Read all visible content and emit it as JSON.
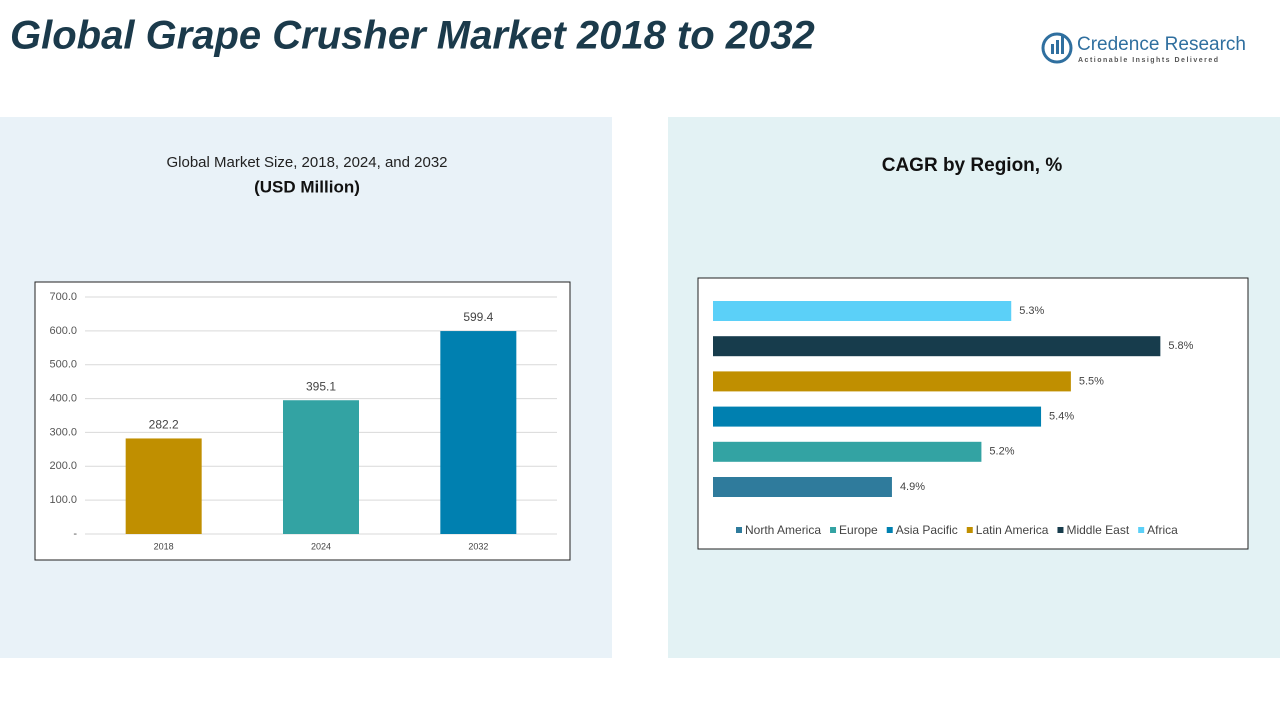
{
  "title": "Global Grape Crusher Market 2018 to 2032",
  "logo": {
    "name": "Credence Research",
    "tagline": "Actionable Insights Delivered"
  },
  "chart_data": [
    {
      "type": "bar",
      "title": "Global Market Size, 2018, 2024, and 2032",
      "subtitle": "(USD Million)",
      "categories": [
        "2018",
        "2024",
        "2032"
      ],
      "values": [
        282.2,
        395.1,
        599.4
      ],
      "value_labels": [
        "282.2",
        "395.1",
        "599.4"
      ],
      "colors": [
        "#c08f00",
        "#33a3a3",
        "#0080b0"
      ],
      "ylim": [
        0,
        700
      ],
      "yticks": [
        {
          "value": 0,
          "label": "-"
        },
        {
          "value": 100,
          "label": "100.0"
        },
        {
          "value": 200,
          "label": "200.0"
        },
        {
          "value": 300,
          "label": "300.0"
        },
        {
          "value": 400,
          "label": "400.0"
        },
        {
          "value": 500,
          "label": "500.0"
        },
        {
          "value": 600,
          "label": "600.0"
        },
        {
          "value": 700,
          "label": "700.0"
        }
      ],
      "grid": true
    },
    {
      "type": "hbar",
      "title": "CAGR by Region, %",
      "categories": [
        "North America",
        "Europe",
        "Asia Pacific",
        "Latin America",
        "Middle East",
        "Africa"
      ],
      "values": [
        4.9,
        5.2,
        5.4,
        5.5,
        5.8,
        5.3
      ],
      "value_labels": [
        "4.9%",
        "5.2%",
        "5.4%",
        "5.5%",
        "5.8%",
        "5.3%"
      ],
      "colors": [
        "#2f7b9c",
        "#33a3a3",
        "#0080b0",
        "#c08f00",
        "#173c4c",
        "#5bd0f8"
      ],
      "xlim": [
        4.3,
        6.0
      ],
      "legend": "bottom"
    }
  ]
}
